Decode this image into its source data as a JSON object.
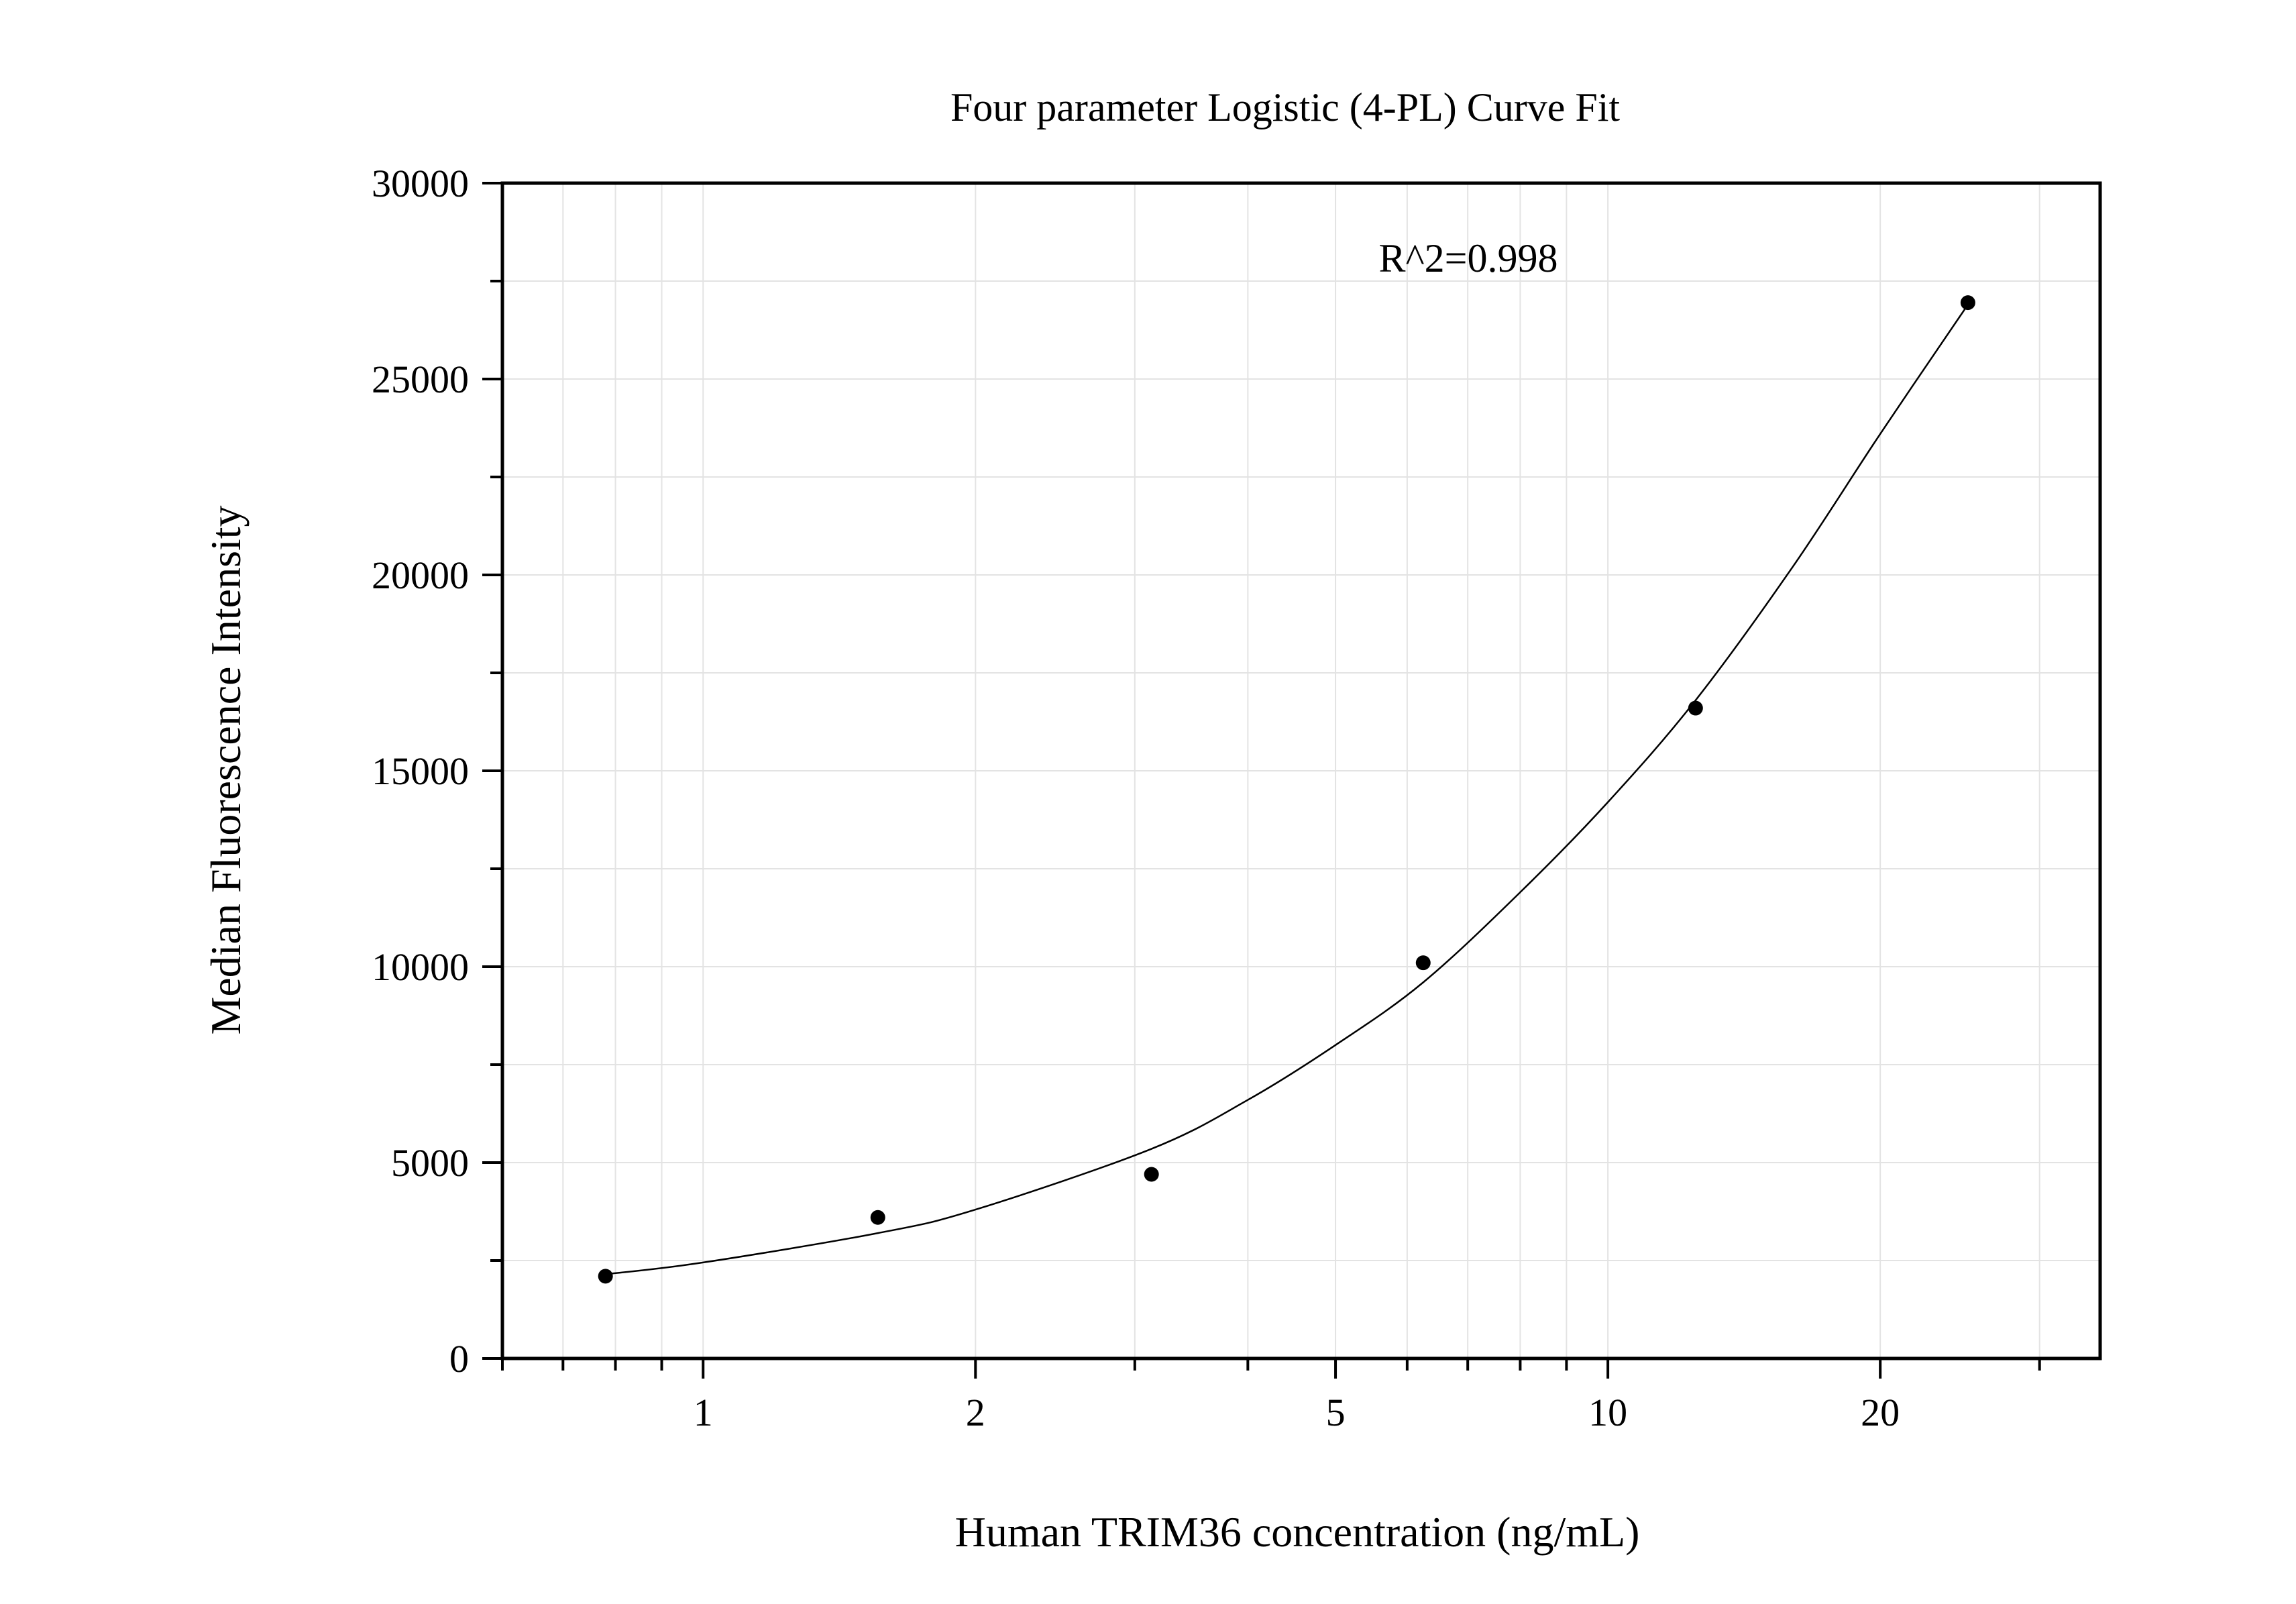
{
  "chart_data": {
    "type": "scatter",
    "title": "Four parameter Logistic (4-PL) Curve Fit",
    "xlabel": "Human TRIM36 concentration (ng/mL)",
    "ylabel": "Median Fluorescence Intensity",
    "x_scale": "log",
    "xlim": [
      0.6,
      35
    ],
    "ylim": [
      0,
      30000
    ],
    "x_ticks": [
      1,
      2,
      5,
      10,
      20
    ],
    "x_tick_labels": [
      "1",
      "2",
      "5",
      "10",
      "20"
    ],
    "y_ticks": [
      0,
      5000,
      10000,
      15000,
      20000,
      25000,
      30000
    ],
    "y_tick_labels": [
      "0",
      "5000",
      "10000",
      "15000",
      "20000",
      "25000",
      "30000"
    ],
    "grid": true,
    "annotation": "R^2=0.998",
    "series": [
      {
        "type": "scatter",
        "x": [
          0.78,
          1.56,
          3.13,
          6.25,
          12.5,
          25
        ],
        "y": [
          2100,
          3600,
          4700,
          10100,
          16600,
          26950
        ]
      },
      {
        "type": "line",
        "fit": "4-PL",
        "x": [
          0.78,
          1,
          1.56,
          2,
          3.13,
          4,
          5,
          6.25,
          8,
          10,
          12.5,
          16,
          20,
          25
        ],
        "y": [
          2150,
          2450,
          3200,
          3800,
          5350,
          6600,
          8000,
          9600,
          11900,
          14200,
          16800,
          20200,
          23600,
          26900
        ]
      }
    ]
  },
  "colors": {
    "points": "#000000",
    "curve": "#000000",
    "grid": "#e3e3e3",
    "frame": "#000000"
  }
}
